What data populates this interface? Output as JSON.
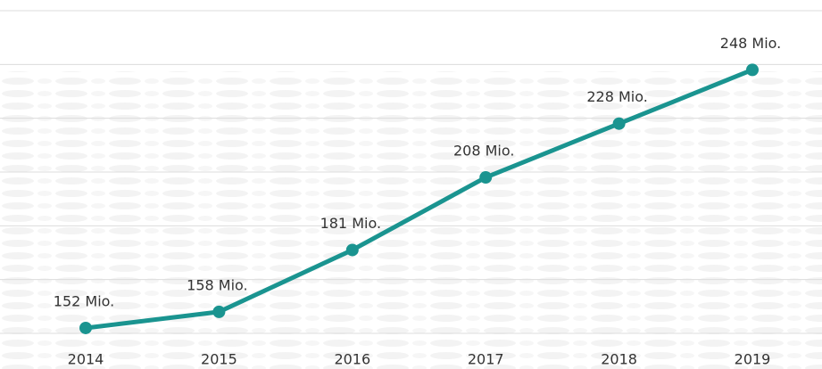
{
  "chart_data": {
    "type": "line",
    "categories": [
      "2014",
      "2015",
      "2016",
      "2017",
      "2018",
      "2019"
    ],
    "series": [
      {
        "color": "#1a9490",
        "values": [
          152,
          158,
          181,
          208,
          228,
          248
        ],
        "value_labels": [
          "152 Mio.",
          "158 Mio.",
          "181 Mio.",
          "208 Mio.",
          "228 Mio.",
          "248 Mio."
        ]
      }
    ],
    "ylim": [
      150,
      270
    ],
    "yticks": [
      150,
      170,
      190,
      210,
      230,
      250,
      270
    ],
    "grid": true
  }
}
